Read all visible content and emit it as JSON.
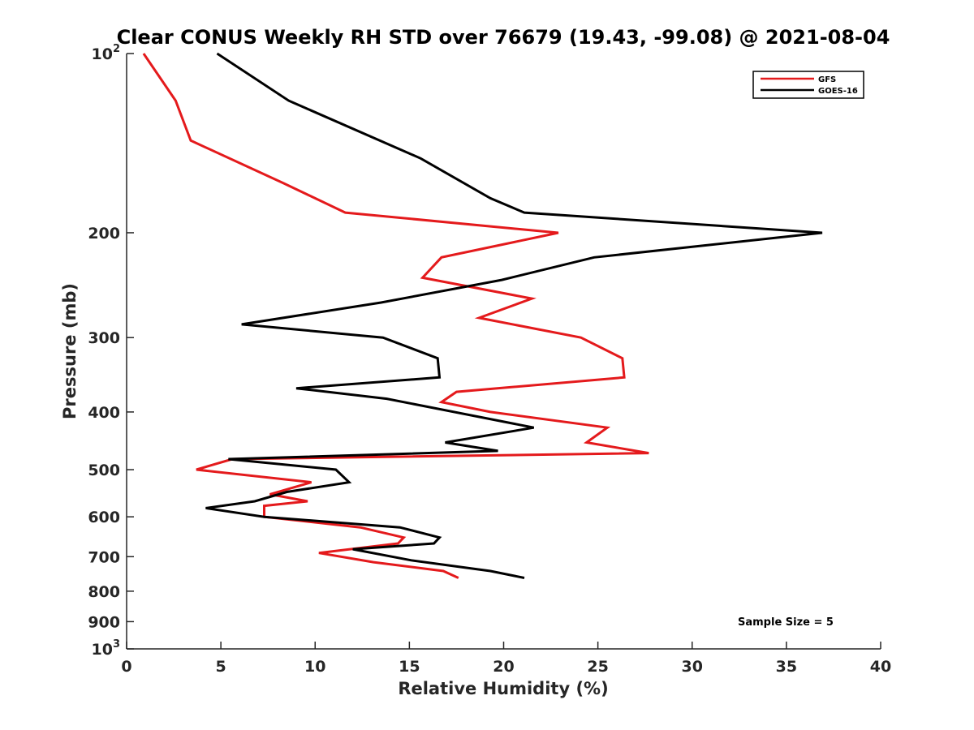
{
  "chart_data": {
    "type": "line",
    "title": "Clear CONUS Weekly RH STD over 76679 (19.43, -99.08) @ 2021-08-04",
    "xlabel": "Relative Humidity (%)",
    "ylabel": "Pressure (mb)",
    "xlim": [
      0,
      40
    ],
    "ylim": [
      100,
      1000
    ],
    "y_scale": "log",
    "y_reversed": true,
    "x_ticks": [
      0,
      5,
      10,
      15,
      20,
      25,
      30,
      35,
      40
    ],
    "x_tick_labels": [
      "0",
      "5",
      "10",
      "15",
      "20",
      "25",
      "30",
      "35",
      "40"
    ],
    "y_ticks": [
      100,
      200,
      300,
      400,
      500,
      600,
      700,
      800,
      900,
      1000
    ],
    "y_tick_labels": [
      "10^2",
      "200",
      "300",
      "400",
      "500",
      "600",
      "700",
      "800",
      "900",
      "10^3"
    ],
    "grid": false,
    "legend_position": "top-right",
    "annotation": "Sample Size = 5",
    "series": [
      {
        "name": "GFS",
        "color": "#e41a1c",
        "points": [
          [
            0.9,
            100
          ],
          [
            2.6,
            120
          ],
          [
            3.4,
            140
          ],
          [
            8.3,
            165
          ],
          [
            11.6,
            185
          ],
          [
            22.9,
            200
          ],
          [
            16.7,
            220
          ],
          [
            15.7,
            238
          ],
          [
            21.5,
            258
          ],
          [
            18.7,
            278
          ],
          [
            24.1,
            300
          ],
          [
            26.3,
            325
          ],
          [
            26.4,
            350
          ],
          [
            17.5,
            370
          ],
          [
            16.7,
            385
          ],
          [
            19.3,
            400
          ],
          [
            25.5,
            425
          ],
          [
            24.4,
            450
          ],
          [
            27.7,
            469
          ],
          [
            5.6,
            480
          ],
          [
            3.7,
            500
          ],
          [
            9.8,
            525
          ],
          [
            7.6,
            550
          ],
          [
            9.6,
            565
          ],
          [
            7.3,
            575
          ],
          [
            7.3,
            600
          ],
          [
            12.4,
            625
          ],
          [
            14.7,
            650
          ],
          [
            14.4,
            665
          ],
          [
            10.2,
            690
          ],
          [
            13.1,
            715
          ],
          [
            16.8,
            740
          ],
          [
            17.6,
            760
          ]
        ]
      },
      {
        "name": "GOES-16",
        "color": "#000000",
        "points": [
          [
            4.8,
            100
          ],
          [
            8.6,
            120
          ],
          [
            15.6,
            150
          ],
          [
            19.3,
            175
          ],
          [
            21.1,
            185
          ],
          [
            36.9,
            200
          ],
          [
            24.8,
            220
          ],
          [
            19.9,
            240
          ],
          [
            13.5,
            262
          ],
          [
            6.1,
            285
          ],
          [
            13.6,
            300
          ],
          [
            16.5,
            325
          ],
          [
            16.6,
            350
          ],
          [
            9.0,
            365
          ],
          [
            13.8,
            380
          ],
          [
            21.6,
            425
          ],
          [
            16.9,
            450
          ],
          [
            19.7,
            465
          ],
          [
            5.4,
            480
          ],
          [
            11.1,
            500
          ],
          [
            11.8,
            525
          ],
          [
            8.5,
            545
          ],
          [
            6.8,
            565
          ],
          [
            4.2,
            580
          ],
          [
            7.3,
            600
          ],
          [
            14.5,
            625
          ],
          [
            16.6,
            650
          ],
          [
            16.3,
            665
          ],
          [
            12.0,
            680
          ],
          [
            15.1,
            710
          ],
          [
            19.3,
            740
          ],
          [
            21.1,
            760
          ]
        ]
      }
    ]
  }
}
